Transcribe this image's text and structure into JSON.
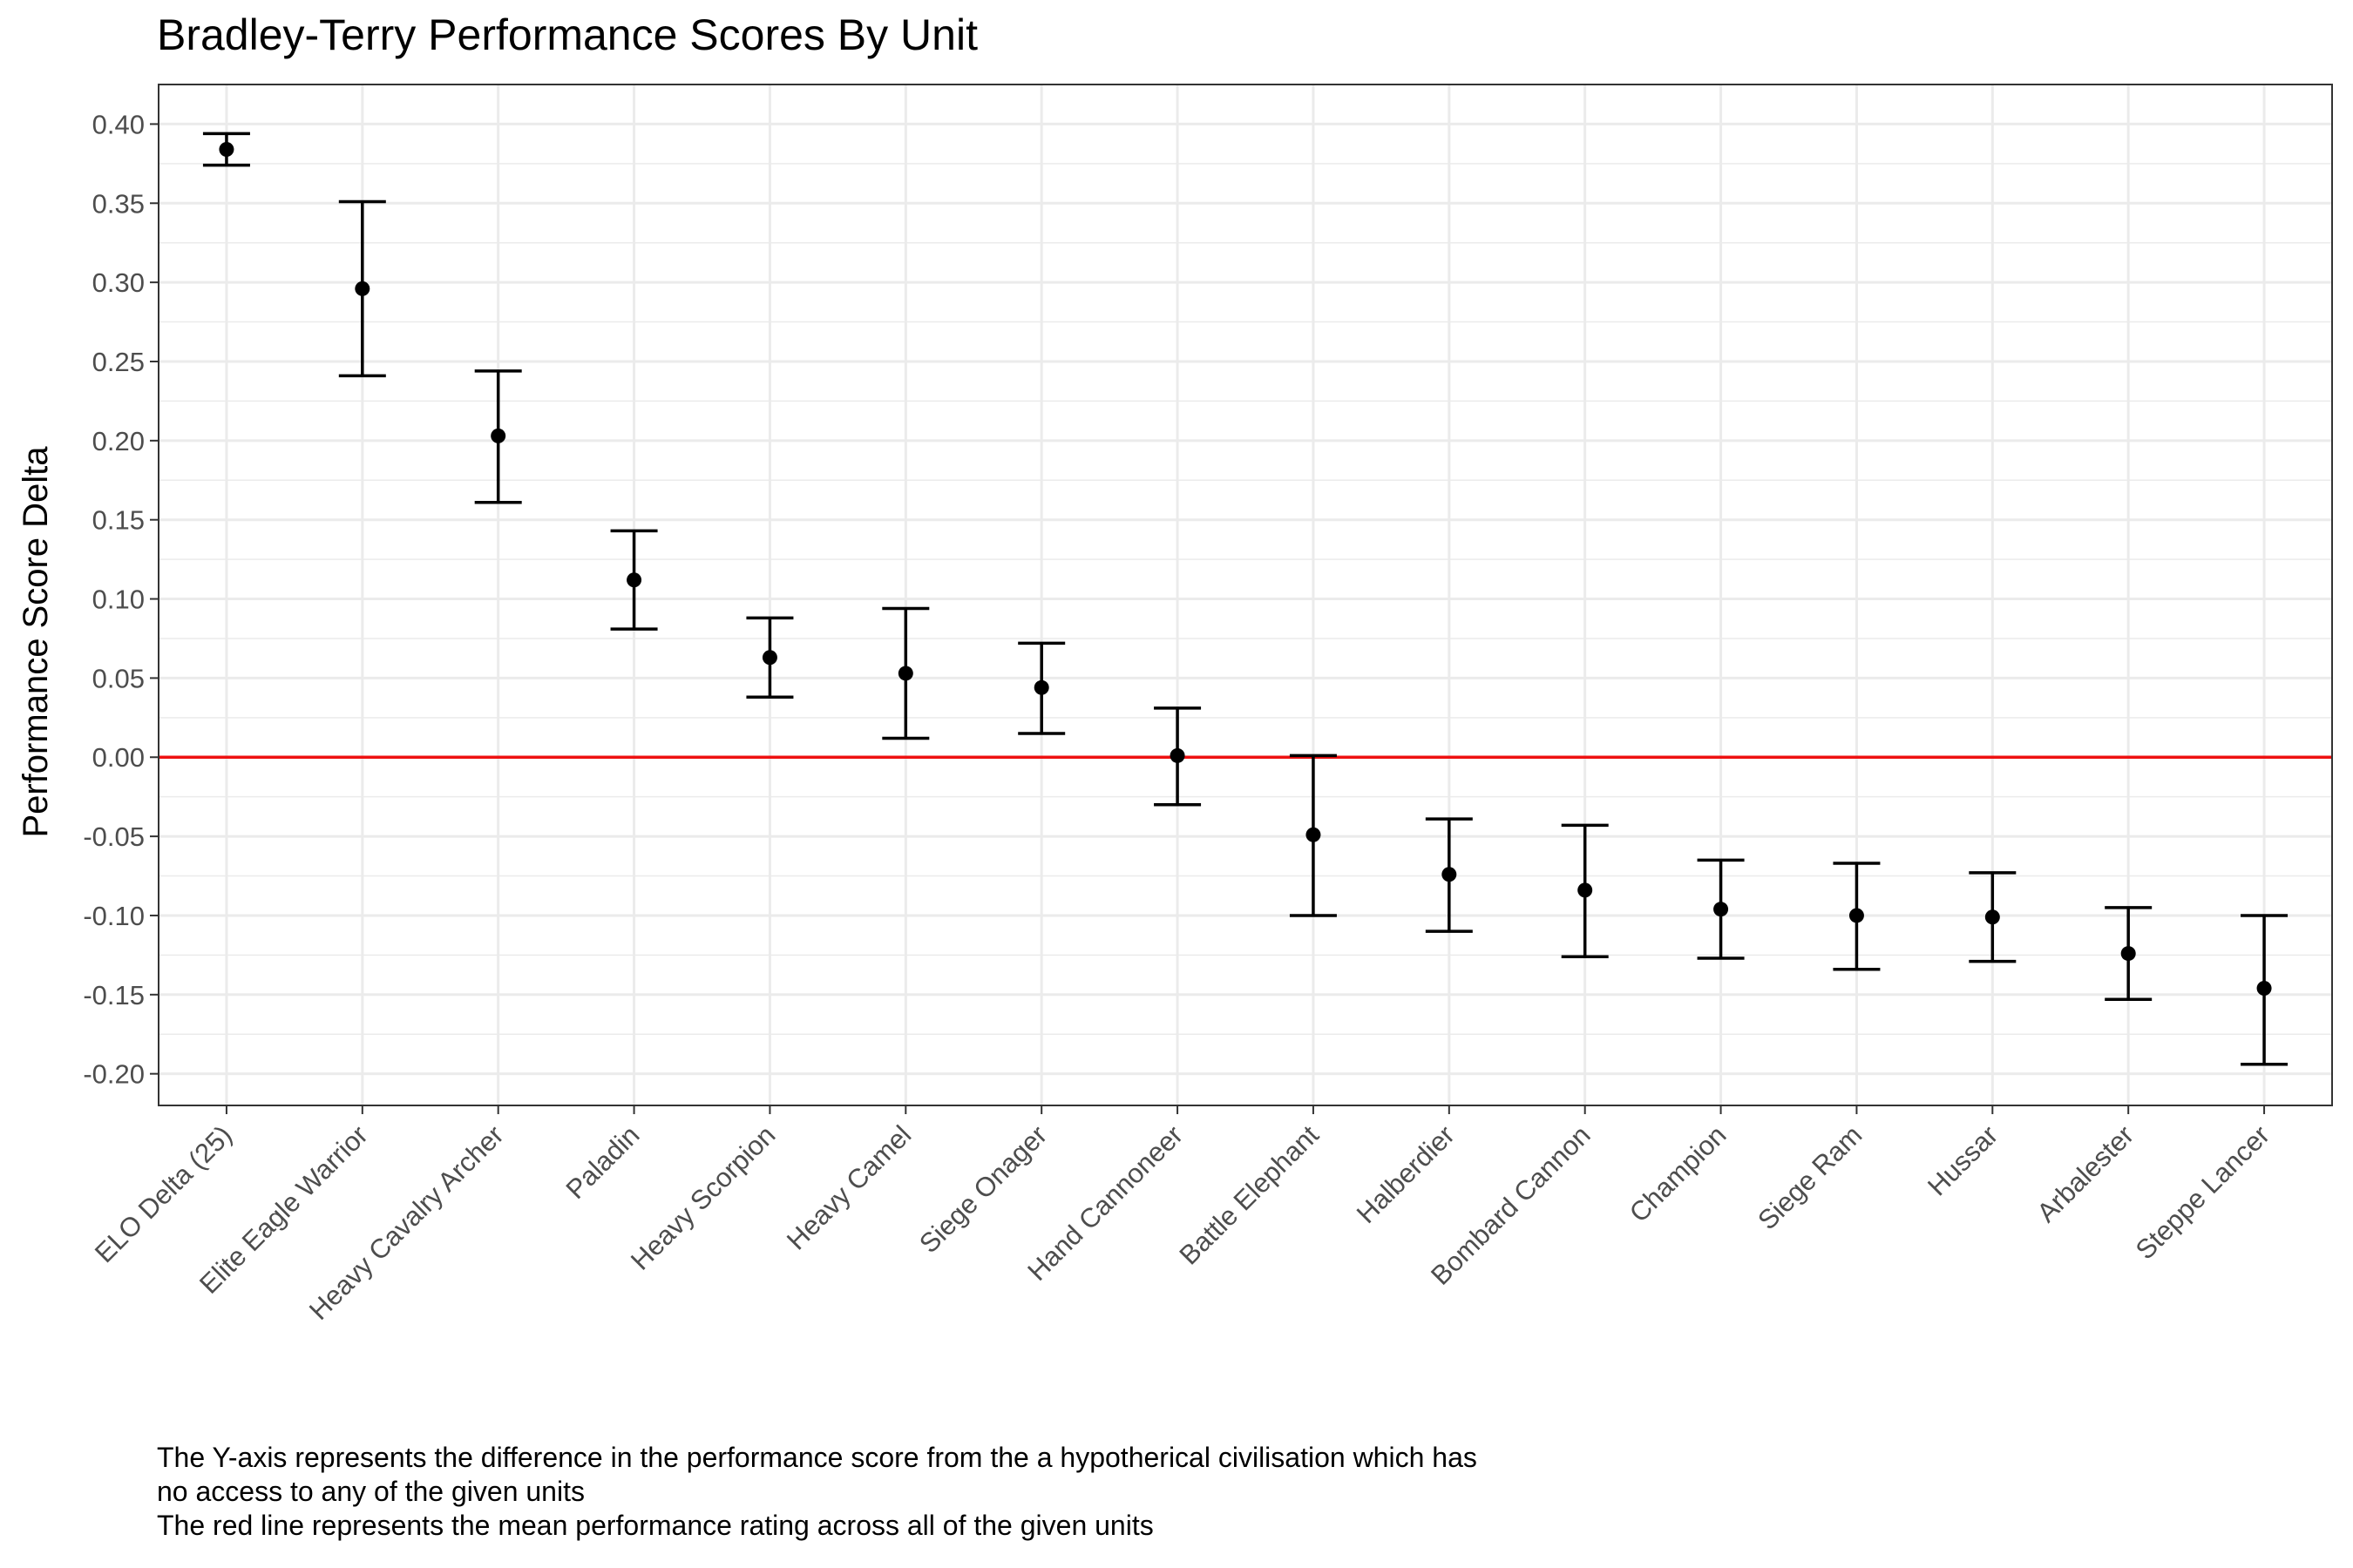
{
  "chart_data": {
    "type": "scatter",
    "title": "Bradley-Terry Performance Scores By Unit",
    "xlabel": "",
    "ylabel": "Performance Score Delta",
    "ylim": [
      -0.22,
      0.425
    ],
    "yticks": [
      "0.40",
      "0.35",
      "0.30",
      "0.25",
      "0.20",
      "0.15",
      "0.10",
      "0.05",
      "0.00",
      "-0.05",
      "-0.10",
      "-0.15",
      "-0.20"
    ],
    "grid": true,
    "legend": "none",
    "categories": [
      "ELO Delta (25)",
      "Elite Eagle Warrior",
      "Heavy Cavalry Archer",
      "Paladin",
      "Heavy Scorpion",
      "Heavy Camel",
      "Siege Onager",
      "Hand Cannoneer",
      "Battle Elephant",
      "Halberdier",
      "Bombard Cannon",
      "Champion",
      "Siege Ram",
      "Hussar",
      "Arbalester",
      "Steppe Lancer"
    ],
    "series": [
      {
        "values": [
          0.384,
          0.296,
          0.203,
          0.112,
          0.063,
          0.053,
          0.044,
          0.001,
          -0.049,
          -0.074,
          -0.084,
          -0.096,
          -0.1,
          -0.101,
          -0.124,
          -0.146
        ],
        "lower": [
          0.374,
          0.241,
          0.161,
          0.081,
          0.038,
          0.012,
          0.015,
          -0.03,
          -0.1,
          -0.11,
          -0.126,
          -0.127,
          -0.134,
          -0.129,
          -0.153,
          -0.194
        ],
        "upper": [
          0.394,
          0.351,
          0.244,
          0.143,
          0.088,
          0.094,
          0.072,
          0.031,
          0.001,
          -0.039,
          -0.043,
          -0.065,
          -0.067,
          -0.073,
          -0.095,
          -0.1
        ]
      }
    ],
    "reference_line": {
      "y": 0.0,
      "color": "#ee1111"
    },
    "colors": {
      "points": "#000000",
      "grid": "#ebebeb",
      "panel_border": "#333333"
    }
  },
  "caption": {
    "line1": "The Y-axis represents the difference in the performance score from the a hypotherical civilisation which has",
    "line2": "no access to any of the given units",
    "line3": "The red line represents the mean performance rating across all of the given units"
  }
}
